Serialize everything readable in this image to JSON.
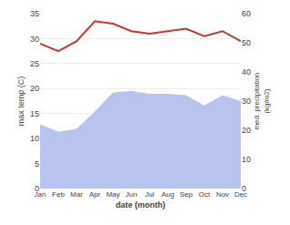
{
  "chart_data": {
    "type": "line",
    "xlabel": "date (month)",
    "ylabel": "max temp (C)",
    "y2label": "med. precipitation\n(kg/m2)",
    "categories": [
      "Jan",
      "Feb",
      "Mar",
      "Apr",
      "May",
      "Jun",
      "Jul",
      "Aug",
      "Sep",
      "Oct",
      "Nov",
      "Dec"
    ],
    "series": [
      {
        "type": "area",
        "axis": "y2",
        "color": "#b8c4ee",
        "values": [
          22.0,
          19.5,
          20.5,
          26.5,
          33.0,
          33.5,
          32.5,
          32.5,
          32.0,
          28.5,
          32.0,
          30.0
        ]
      },
      {
        "type": "line",
        "color": "#cc3333",
        "values": [
          29.0,
          27.5,
          29.5,
          33.5,
          33.0,
          31.5,
          31.0,
          31.5,
          32.0,
          30.5,
          31.5,
          29.5
        ]
      }
    ],
    "ylim": [
      0,
      35
    ],
    "yticks": [
      0,
      5,
      10,
      15,
      20,
      25,
      30,
      35
    ],
    "y2lim": [
      0,
      60
    ],
    "y2ticks": [
      0,
      10,
      20,
      30,
      40,
      50,
      60
    ],
    "grid": true
  }
}
